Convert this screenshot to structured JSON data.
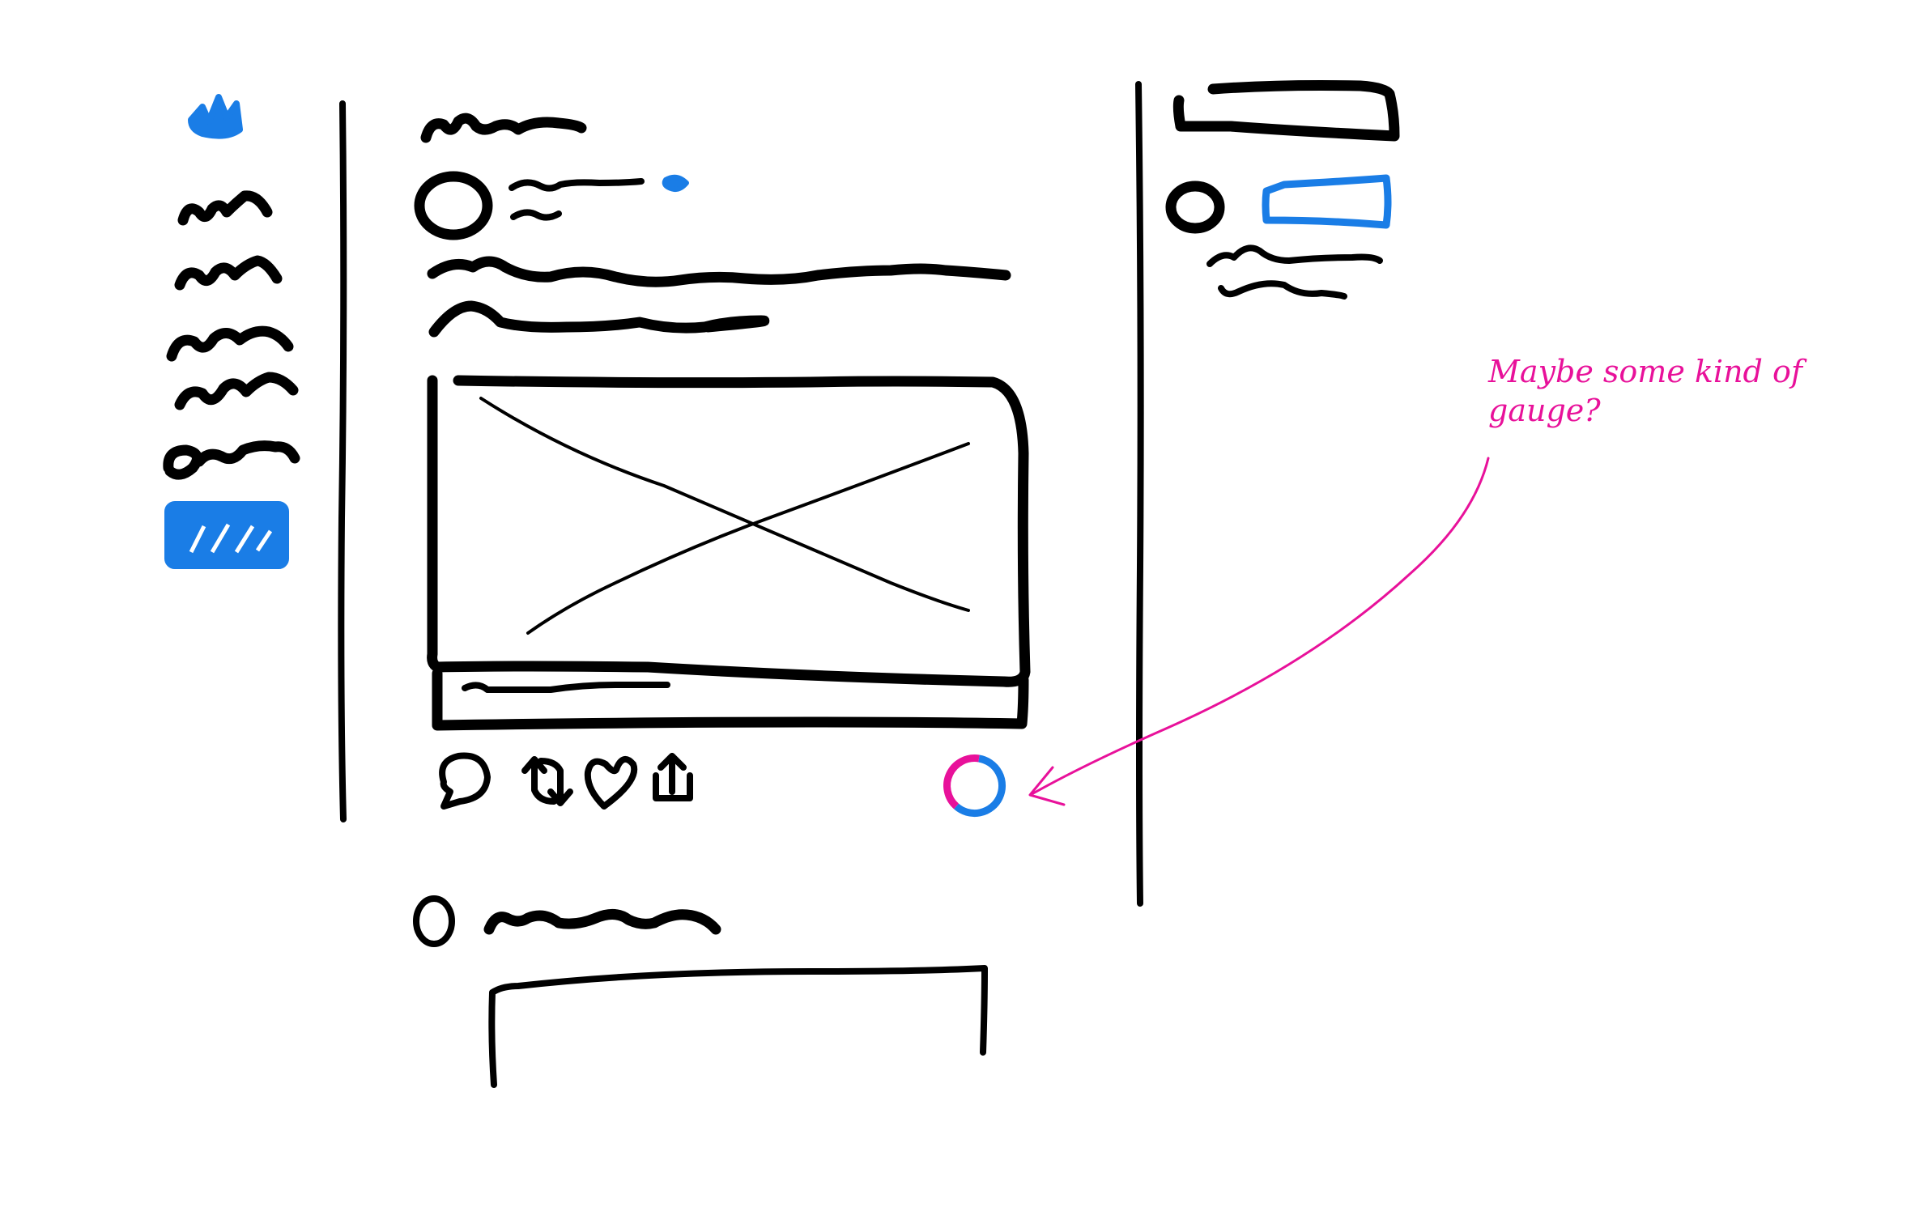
{
  "colors": {
    "ink": "#000000",
    "accent": "#1a7de6",
    "annotation": "#e8119a",
    "background": "#ffffff"
  },
  "annotation": {
    "text": "Maybe some kind of gauge?"
  },
  "post": {
    "action_icons": [
      "reply-icon",
      "retweet-icon",
      "like-icon",
      "share-icon"
    ],
    "gauge_icon": "gauge-ring-icon"
  },
  "sidebar": {
    "logo_icon": "bird-logo-icon"
  }
}
